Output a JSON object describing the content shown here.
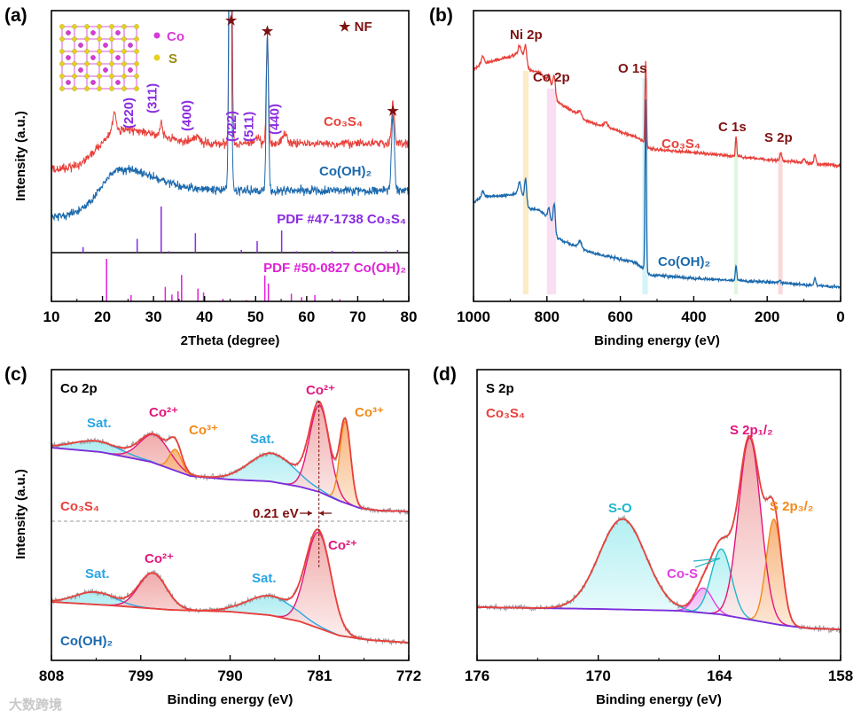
{
  "colors": {
    "co3s4": "#e8413b",
    "coh2": "#1b69ad",
    "pdf47": "#8a2be2",
    "pdf50": "#e020d8",
    "darkred": "#7d1212",
    "sat": "#2aa6e3",
    "co2": "#e2167c",
    "co3": "#f28a1a",
    "background": "#7a2ee0",
    "raw": "#9a9a9a",
    "so": "#1fb8c8",
    "cos": "#e040e0"
  },
  "watermark": "大数跨境",
  "chart_data": [
    {
      "panel": "(a)",
      "type": "line",
      "xlabel": "2Theta (degree)",
      "ylabel": "Intensity (a.u.)",
      "xlim": [
        10,
        80
      ],
      "ylim": [
        0,
        328
      ],
      "xticks": [
        10,
        20,
        30,
        40,
        50,
        60,
        70,
        80
      ],
      "inset_legend": [
        {
          "label": "Co",
          "color": "#d63cd6"
        },
        {
          "label": "S",
          "color": "#e6d21e"
        }
      ],
      "nf_legend": "★ NF",
      "star": "★",
      "nf_peaks": [
        45.2,
        52.3,
        76.9
      ],
      "miller": [
        {
          "label": "(220)",
          "x": 27.0
        },
        {
          "label": "(311)",
          "x": 31.6
        },
        {
          "label": "(400)",
          "x": 38.4
        },
        {
          "label": "(422)",
          "x": 47.2
        },
        {
          "label": "(511)",
          "x": 50.6
        },
        {
          "label": "(440)",
          "x": 55.6
        }
      ],
      "series": [
        {
          "name": "Co₃S₄",
          "color_key": "co3s4",
          "base_low": 148,
          "base_high": 178,
          "hump_amp": 17,
          "hump_center": 23,
          "peaks": [
            [
              22.3,
              22,
              0.3
            ],
            [
              31.5,
              14,
              0.3
            ],
            [
              38.5,
              6,
              0.6
            ],
            [
              45.1,
              500,
              0.22
            ],
            [
              50.4,
              8,
              0.4
            ],
            [
              52.3,
              118,
              0.22
            ],
            [
              55.7,
              10,
              0.5
            ],
            [
              76.9,
              45,
              0.28
            ]
          ]
        },
        {
          "name": "Co(OH)₂",
          "color_key": "coh2",
          "base_low": 95,
          "base_high": 125,
          "hump_amp": 25,
          "hump_center": 23,
          "peaks": [
            [
              45.0,
              500,
              0.22
            ],
            [
              52.3,
              175,
              0.22
            ],
            [
              76.9,
              85,
              0.28
            ]
          ]
        }
      ],
      "references": [
        {
          "name": "PDF #47-1738 Co₃S₄",
          "color_key": "pdf47",
          "sticks": [
            [
              16.2,
              12
            ],
            [
              26.8,
              30
            ],
            [
              31.5,
              100
            ],
            [
              33.0,
              3
            ],
            [
              38.2,
              42
            ],
            [
              47.2,
              6
            ],
            [
              50.3,
              25
            ],
            [
              55.1,
              48
            ],
            [
              58.0,
              3
            ],
            [
              65.0,
              4
            ],
            [
              69.0,
              3
            ],
            [
              75.5,
              3
            ],
            [
              77.8,
              6
            ]
          ]
        },
        {
          "name": "PDF #50-0827 Co(OH)₂",
          "color_key": "pdf50",
          "sticks": [
            [
              20.8,
              100
            ],
            [
              25.6,
              15
            ],
            [
              32.3,
              34
            ],
            [
              33.6,
              16
            ],
            [
              34.8,
              24
            ],
            [
              35.5,
              62
            ],
            [
              38.7,
              30
            ],
            [
              39.8,
              21
            ],
            [
              43.6,
              6
            ],
            [
              48.2,
              3
            ],
            [
              51.8,
              61
            ],
            [
              52.5,
              42
            ],
            [
              57.0,
              18
            ],
            [
              59.0,
              10
            ],
            [
              61.6,
              15
            ],
            [
              66.5,
              5
            ]
          ]
        }
      ]
    },
    {
      "panel": "(b)",
      "type": "line",
      "xlabel": "Binding energy (eV)",
      "xlim": [
        1000,
        0
      ],
      "ylim": [
        0,
        328
      ],
      "xticks": [
        1000,
        800,
        600,
        400,
        200,
        0
      ],
      "bands": [
        {
          "label": "Ni 2p",
          "range": [
            865,
            850
          ],
          "color": "#fbe7b8"
        },
        {
          "label": "Co 2p",
          "range": [
            800,
            775
          ],
          "color": "#f9d6ee"
        },
        {
          "label": "O 1s",
          "range": [
            540,
            525
          ],
          "color": "#c9f1f6"
        },
        {
          "label": "C 1s",
          "range": [
            290,
            280
          ],
          "color": "#d6f5d6"
        },
        {
          "label": "S 2p",
          "range": [
            170,
            158
          ],
          "color": "#f8cfcf"
        }
      ],
      "series": [
        {
          "name": "Co₃S₄",
          "color_key": "co3s4",
          "background": [
            [
              1000,
              262
            ],
            [
              975,
              268
            ],
            [
              940,
              272
            ],
            [
              900,
              276
            ],
            [
              870,
              282
            ],
            [
              855,
              262
            ],
            [
              820,
              258
            ],
            [
              790,
              245
            ],
            [
              775,
              226
            ],
            [
              720,
              212
            ],
            [
              700,
              205
            ],
            [
              650,
              198
            ],
            [
              560,
              186
            ],
            [
              540,
              181
            ],
            [
              520,
              172
            ],
            [
              400,
              168
            ],
            [
              300,
              164
            ],
            [
              200,
              160
            ],
            [
              0,
              153
            ]
          ],
          "peaks": [
            [
              975,
              8,
              4
            ],
            [
              858,
              22,
              3.5
            ],
            [
              875,
              8,
              3
            ],
            [
              780,
              22,
              3.5
            ],
            [
              795,
              10,
              3
            ],
            [
              710,
              6,
              5
            ],
            [
              640,
              6,
              5
            ],
            [
              531,
              95,
              1.8
            ],
            [
              284.8,
              24,
              1.8
            ],
            [
              163,
              9,
              2.5
            ],
            [
              100,
              4,
              3
            ],
            [
              70,
              10,
              2.5
            ]
          ]
        },
        {
          "name": "Co(OH)₂",
          "color_key": "coh2",
          "background": [
            [
              1000,
              112
            ],
            [
              975,
              118
            ],
            [
              900,
              120
            ],
            [
              870,
              124
            ],
            [
              855,
              105
            ],
            [
              820,
              103
            ],
            [
              790,
              92
            ],
            [
              775,
              72
            ],
            [
              720,
              62
            ],
            [
              700,
              58
            ],
            [
              650,
              52
            ],
            [
              560,
              44
            ],
            [
              540,
              38
            ],
            [
              520,
              30
            ],
            [
              400,
              26
            ],
            [
              300,
              24
            ],
            [
              200,
              22
            ],
            [
              0,
              16
            ]
          ],
          "peaks": [
            [
              975,
              6,
              4
            ],
            [
              858,
              30,
              3
            ],
            [
              875,
              12,
              3
            ],
            [
              780,
              32,
              3
            ],
            [
              795,
              12,
              3
            ],
            [
              710,
              8,
              5
            ],
            [
              531,
              195,
              1.8
            ],
            [
              284.8,
              18,
              1.8
            ],
            [
              165,
              3,
              2.5
            ],
            [
              70,
              8,
              2.5
            ]
          ]
        }
      ],
      "labels": {
        "ni2p": "Ni 2p",
        "co2p": "Co 2p",
        "o1s": "O 1s",
        "c1s": "C 1s",
        "s2p": "S 2p",
        "co3s4": "Co₃S₄",
        "coh2": "Co(OH)₂"
      }
    },
    {
      "panel": "(c)",
      "type": "line",
      "title": "Co 2p",
      "xlabel": "Binding energy (eV)",
      "ylabel": "Intensity (a.u.)",
      "xlim": [
        808,
        772
      ],
      "ylim": [
        0,
        328
      ],
      "xticks": [
        808,
        799,
        790,
        781,
        772
      ],
      "shift_annotation": "0.21 eV",
      "series": [
        {
          "name": "Co₃S₄",
          "name_color_key": "co3s4",
          "bg_color_key": "background",
          "background": [
            [
              808,
              240
            ],
            [
              803,
              235
            ],
            [
              798,
              224
            ],
            [
              794,
              208
            ],
            [
              790,
              204
            ],
            [
              786,
              202
            ],
            [
              783,
              196
            ],
            [
              781,
              190
            ],
            [
              779,
              180
            ],
            [
              777,
              172
            ],
            [
              775,
              169
            ],
            [
              772,
              168
            ]
          ],
          "components": [
            {
              "label": "Sat.",
              "kind": "sat",
              "center": 803.5,
              "amp": 12,
              "sigma": 2.4
            },
            {
              "label": "Co²⁺",
              "kind": "co2",
              "center": 797.6,
              "amp": 32,
              "sigma": 1.5
            },
            {
              "label": "Co³⁺",
              "kind": "co3",
              "center": 795.5,
              "amp": 24,
              "sigma": 0.6
            },
            {
              "label": "Sat.",
              "kind": "sat",
              "center": 785.8,
              "amp": 32,
              "sigma": 2.3
            },
            {
              "label": "Co²⁺",
              "kind": "co2",
              "center": 781.0,
              "amp": 98,
              "sigma": 1.0
            },
            {
              "label": "Co³⁺",
              "kind": "co3",
              "center": 778.4,
              "amp": 92,
              "sigma": 0.55
            }
          ]
        },
        {
          "name": "Co(OH)₂",
          "name_color_key": "coh2",
          "bg_color_key": "co3s4",
          "background": [
            [
              808,
              66
            ],
            [
              802,
              62
            ],
            [
              796,
              57
            ],
            [
              790,
              55
            ],
            [
              786,
              51
            ],
            [
              783,
              44
            ],
            [
              781,
              36
            ],
            [
              779,
              28
            ],
            [
              776,
              23
            ],
            [
              772,
              20
            ]
          ],
          "components": [
            {
              "label": "Sat.",
              "kind": "sat",
              "center": 803.6,
              "amp": 14,
              "sigma": 2.0
            },
            {
              "label": "Co²⁺",
              "kind": "co2",
              "center": 797.8,
              "amp": 40,
              "sigma": 1.4
            },
            {
              "label": "Sat.",
              "kind": "sat",
              "center": 785.9,
              "amp": 22,
              "sigma": 2.4
            },
            {
              "label": "Co²⁺",
              "kind": "co2",
              "center": 781.1,
              "amp": 108,
              "sigma": 1.25
            }
          ]
        }
      ]
    },
    {
      "panel": "(d)",
      "type": "line",
      "title": "S 2p",
      "sample": "Co₃S₄",
      "xlabel": "Binding energy (eV)",
      "xlim": [
        176,
        158
      ],
      "ylim": [
        0,
        328
      ],
      "xticks": [
        176,
        170,
        164,
        158
      ],
      "background": [
        [
          176,
          60
        ],
        [
          170,
          58
        ],
        [
          166,
          56
        ],
        [
          164,
          52
        ],
        [
          162.5,
          46
        ],
        [
          161,
          40
        ],
        [
          159.5,
          36
        ],
        [
          158,
          35
        ]
      ],
      "components": [
        {
          "label": "S-O",
          "kind": "so",
          "center": 168.8,
          "amp": 102,
          "sigma": 1.15
        },
        {
          "label": "Co-S",
          "kind": "cos",
          "center": 164.8,
          "amp": 28,
          "sigma": 0.45
        },
        {
          "label": "",
          "kind": "so",
          "center": 163.9,
          "amp": 74,
          "sigma": 0.5
        },
        {
          "label": "S 2p₁/₂",
          "kind": "co2",
          "center": 162.5,
          "amp": 205,
          "sigma": 0.55
        },
        {
          "label": "S 2p₃/₂",
          "kind": "co3",
          "center": 161.3,
          "amp": 118,
          "sigma": 0.38
        }
      ]
    }
  ]
}
